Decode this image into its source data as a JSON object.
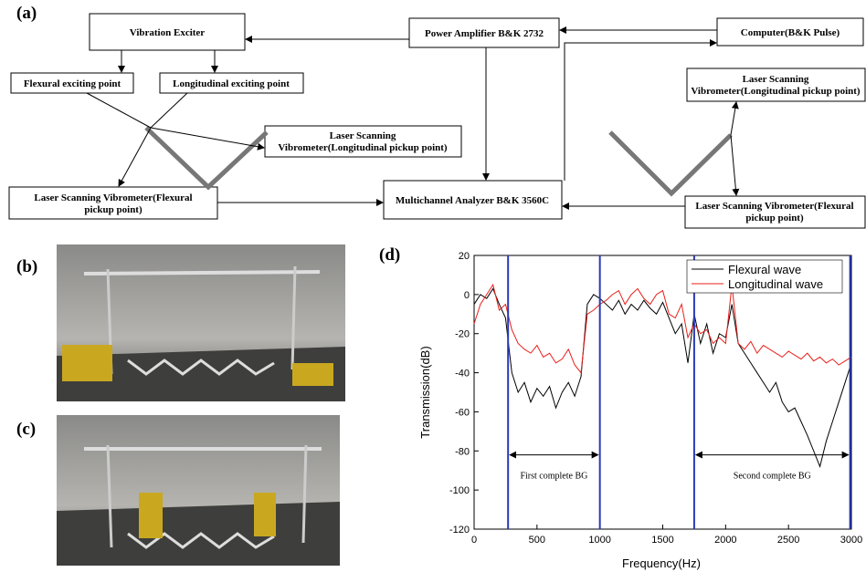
{
  "panels": {
    "a": "(a)",
    "b": "(b)",
    "c": "(c)",
    "d": "(d)"
  },
  "diagram": {
    "nodes": [
      {
        "lines": [
          "Vibration Exciter"
        ]
      },
      {
        "lines": [
          "Power Amplifier B&K 2732"
        ]
      },
      {
        "lines": [
          "Computer(B&K Pulse)"
        ]
      },
      {
        "lines": [
          "Flexural exciting point"
        ]
      },
      {
        "lines": [
          "Longitudinal exciting point"
        ]
      },
      {
        "lines": [
          "Laser Scanning",
          "Vibrometer(Longitudinal pickup point)"
        ]
      },
      {
        "lines": [
          "Laser Scanning",
          "Vibrometer(Longitudinal pickup point)"
        ]
      },
      {
        "lines": [
          "Laser Scanning Vibrometer(Flexural",
          "pickup point)"
        ]
      },
      {
        "lines": [
          "Multichannel Analyzer B&K 3560C"
        ]
      },
      {
        "lines": [
          "Laser Scanning Vibrometer(Flexural",
          "pickup point)"
        ]
      }
    ]
  },
  "chart_data": {
    "type": "line",
    "x_label": "Frequency(Hz)",
    "y_label": "Transmission(dB)",
    "xlim": [
      0,
      3000
    ],
    "xticks": [
      0,
      500,
      1000,
      1500,
      2000,
      2500,
      3000
    ],
    "ylim": [
      -120,
      20
    ],
    "yticks": [
      -120,
      -100,
      -80,
      -60,
      -40,
      -20,
      0,
      20
    ],
    "legend": "upper right",
    "x": [
      0,
      50,
      100,
      150,
      200,
      250,
      300,
      350,
      400,
      450,
      500,
      550,
      600,
      650,
      700,
      750,
      800,
      850,
      900,
      950,
      1000,
      1050,
      1100,
      1150,
      1200,
      1250,
      1300,
      1350,
      1400,
      1450,
      1500,
      1550,
      1600,
      1650,
      1700,
      1750,
      1800,
      1850,
      1900,
      1950,
      2000,
      2050,
      2100,
      2150,
      2200,
      2250,
      2300,
      2350,
      2400,
      2450,
      2500,
      2550,
      2600,
      2650,
      2700,
      2750,
      2800,
      2850,
      2900,
      2950,
      3000
    ],
    "series": [
      {
        "name": "Flexural wave",
        "color": "#000000",
        "values": [
          -5,
          0,
          -2,
          3,
          -5,
          -12,
          -40,
          -50,
          -45,
          -55,
          -48,
          -52,
          -47,
          -58,
          -50,
          -45,
          -52,
          -42,
          -5,
          0,
          -2,
          -5,
          -8,
          -3,
          -10,
          -5,
          -8,
          -3,
          -7,
          -10,
          -4,
          -12,
          -20,
          -15,
          -35,
          -10,
          -25,
          -15,
          -30,
          -20,
          -22,
          -5,
          -25,
          -30,
          -35,
          -40,
          -45,
          -50,
          -45,
          -55,
          -60,
          -58,
          -65,
          -72,
          -80,
          -88,
          -75,
          -65,
          -55,
          -45,
          -35
        ]
      },
      {
        "name": "Longitudinal wave",
        "color": "#e8201a",
        "values": [
          -15,
          -5,
          0,
          5,
          -8,
          -5,
          -18,
          -25,
          -28,
          -30,
          -26,
          -32,
          -30,
          -35,
          -33,
          -28,
          -36,
          -40,
          -10,
          -8,
          -5,
          -3,
          0,
          2,
          -5,
          0,
          3,
          -2,
          -5,
          0,
          2,
          -10,
          -12,
          -5,
          -22,
          -15,
          -20,
          -18,
          -25,
          -22,
          -25,
          5,
          -25,
          -28,
          -24,
          -30,
          -26,
          -28,
          -30,
          -32,
          -29,
          -31,
          -33,
          -30,
          -34,
          -32,
          -35,
          -33,
          -36,
          -34,
          -32
        ]
      }
    ],
    "bands": [
      {
        "label": "First complete BG",
        "range": [
          270,
          1000
        ],
        "arrow_y": -82
      },
      {
        "label": "Second complete BG",
        "range": [
          1750,
          2990
        ],
        "arrow_y": -82
      }
    ],
    "band_color": "#2a3ab8"
  }
}
